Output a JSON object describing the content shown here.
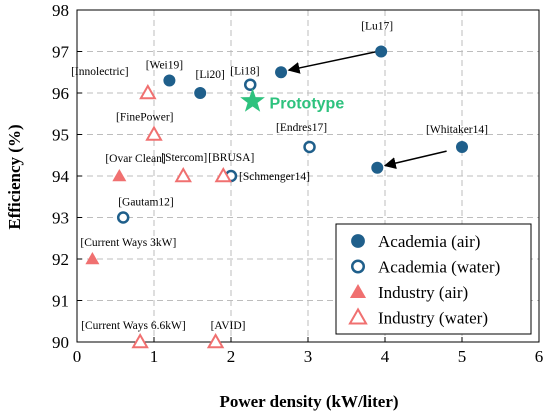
{
  "chart_data": {
    "type": "scatter",
    "xlabel": "Power density (kW/liter)",
    "ylabel": "Efficiency (%)",
    "xlim": [
      0,
      6
    ],
    "ylim": [
      90,
      98
    ],
    "xticks": [
      0,
      1,
      2,
      3,
      4,
      5,
      6
    ],
    "yticks": [
      90,
      91,
      92,
      93,
      94,
      95,
      96,
      97,
      98
    ],
    "grid": true,
    "legend_position": "bottom-right",
    "series": [
      {
        "name": "Academia (air)",
        "marker": "filled-circle",
        "color": "#1f5f8b",
        "points": [
          {
            "x": 1.2,
            "y": 96.3,
            "label": "[Wei19]"
          },
          {
            "x": 1.6,
            "y": 96.0,
            "label": "[Li20]"
          },
          {
            "x": 2.65,
            "y": 96.5,
            "label": ""
          },
          {
            "x": 3.95,
            "y": 97.0,
            "label": "[Lu17]"
          },
          {
            "x": 3.9,
            "y": 94.2,
            "label": ""
          },
          {
            "x": 5.0,
            "y": 94.7,
            "label": "[Whitaker14]"
          }
        ]
      },
      {
        "name": "Academia (water)",
        "marker": "open-circle",
        "color": "#1f5f8b",
        "points": [
          {
            "x": 2.25,
            "y": 96.2,
            "label": "[Li18]"
          },
          {
            "x": 3.02,
            "y": 94.7,
            "label": "[Endres17]"
          },
          {
            "x": 2.0,
            "y": 94.0,
            "label": "[Schmenger14]"
          },
          {
            "x": 0.6,
            "y": 93.0,
            "label": "[Gautam12]"
          }
        ]
      },
      {
        "name": "Industry (air)",
        "marker": "filled-triangle",
        "color": "#f07070",
        "points": [
          {
            "x": 0.55,
            "y": 94.0,
            "label": "[Ovar Clean]"
          },
          {
            "x": 0.2,
            "y": 92.0,
            "label": "[Current Ways 3kW]"
          }
        ]
      },
      {
        "name": "Industry (water)",
        "marker": "open-triangle",
        "color": "#f07070",
        "points": [
          {
            "x": 0.92,
            "y": 96.0,
            "label": "[Innolectric]"
          },
          {
            "x": 1.0,
            "y": 95.0,
            "label": "[FinePower]"
          },
          {
            "x": 1.38,
            "y": 94.0,
            "label": "[Stercom]"
          },
          {
            "x": 1.9,
            "y": 94.0,
            "label": "[BRUSA]"
          },
          {
            "x": 0.82,
            "y": 90.0,
            "label": "[Current Ways 6.6kW]"
          },
          {
            "x": 1.8,
            "y": 90.0,
            "label": "[AVID]"
          }
        ]
      }
    ],
    "highlight": {
      "x": 2.28,
      "y": 95.8,
      "label": "Prototype",
      "marker": "star",
      "color": "#2ec27e"
    },
    "arrows": [
      {
        "from": [
          3.9,
          97.0
        ],
        "to": [
          2.75,
          96.55
        ]
      },
      {
        "from": [
          4.8,
          94.6
        ],
        "to": [
          4.0,
          94.25
        ]
      }
    ]
  }
}
